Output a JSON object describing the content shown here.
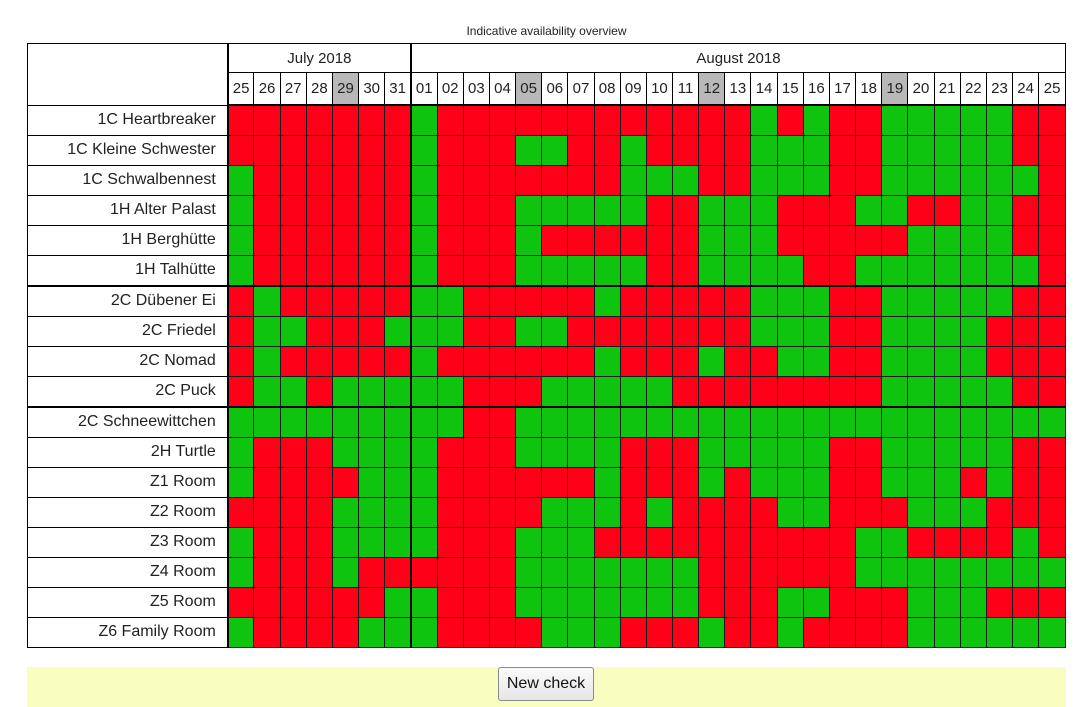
{
  "title": "Indicative availability overview",
  "months": [
    {
      "label": "July 2018",
      "span": 7
    },
    {
      "label": "August 2018",
      "span": 25
    }
  ],
  "days": [
    "25",
    "26",
    "27",
    "28",
    "29",
    "30",
    "31",
    "01",
    "02",
    "03",
    "04",
    "05",
    "06",
    "07",
    "08",
    "09",
    "10",
    "11",
    "12",
    "13",
    "14",
    "15",
    "16",
    "17",
    "18",
    "19",
    "20",
    "21",
    "22",
    "23",
    "24",
    "25"
  ],
  "weekend_days": [
    4,
    11,
    18,
    25
  ],
  "month_start_index": 7,
  "group_separator_rows": [
    6,
    10
  ],
  "legend_colors": {
    "free": "#0fc40f",
    "booked": "#ff0019",
    "weekend_header": "#b8b8b8"
  },
  "rooms": [
    {
      "name": "1C Heartbreaker",
      "avail": "BBBBBBBFBBBBBBBBBBBBFBFBBFFFFFBB"
    },
    {
      "name": "1C Kleine Schwester",
      "avail": "BBBBBBBFBBBFFBBFBBBBFFFBBFFFFFBB"
    },
    {
      "name": "1C Schwalbennest",
      "avail": "FBBBBBBFBBBBBBBFFFBBFFFBBFFFFFFB"
    },
    {
      "name": "1H Alter Palast",
      "avail": "FBBBBBBFBBBFFFFFBBFFFBBBFFBBFFBB"
    },
    {
      "name": "1H Berghütte",
      "avail": "FBBBBBBFBBBFBBBBBBFFFBBBBBFFFFBB"
    },
    {
      "name": "1H Talhütte",
      "avail": "FBBBBBBFBBBFFFFFBBFFFFBBFFFFFFFB"
    },
    {
      "name": "2C Dübener Ei",
      "avail": "BFBBBBBFFBBBBBFBBBBBFFFBBFFFFFBB"
    },
    {
      "name": "2C Friedel",
      "avail": "BFFBBBFFFBBFFBBBBBBBFFFBBFFFFBBB"
    },
    {
      "name": "2C Nomad",
      "avail": "BFBBBBBFBBBBBBFBBBFBBFFBBFFFFBBB"
    },
    {
      "name": "2C Puck",
      "avail": "BFFBFFFFFBBBFFFFFBBBBBBBBFFFFFBB"
    },
    {
      "name": "2C Schneewittchen",
      "avail": "FFFFFFFFFBBFFFFFFFFFFFFFFFFFFFFF"
    },
    {
      "name": "2H Turtle",
      "avail": "FBBBFFFFBBBFFFFBBBFFFFFBBFFFFFBB"
    },
    {
      "name": "Z1 Room",
      "avail": "FBBBBFFFBBBBBBFBBBFBFFFBBFFFBFBB"
    },
    {
      "name": "Z2 Room",
      "avail": "BBBBFFFFBBBBFFFBFBBBBFFBBBFFFBBB"
    },
    {
      "name": "Z3 Room",
      "avail": "FBBBFFFFBBBFFFBBBBBBBBBBFFBBBBFB"
    },
    {
      "name": "Z4 Room",
      "avail": "FBBBFBBBBBBFFFFFFFBBBBBBFFFFFFFF"
    },
    {
      "name": "Z5 Room",
      "avail": "BBBBBBFFBBBFFFFFFFBBBFFBBBFFFBBB"
    },
    {
      "name": "Z6 Family Room",
      "avail": "FBBBBFFFBBBBFFFBBBFBBFBBBBFFFFFF"
    }
  ],
  "new_check_label": "New check"
}
